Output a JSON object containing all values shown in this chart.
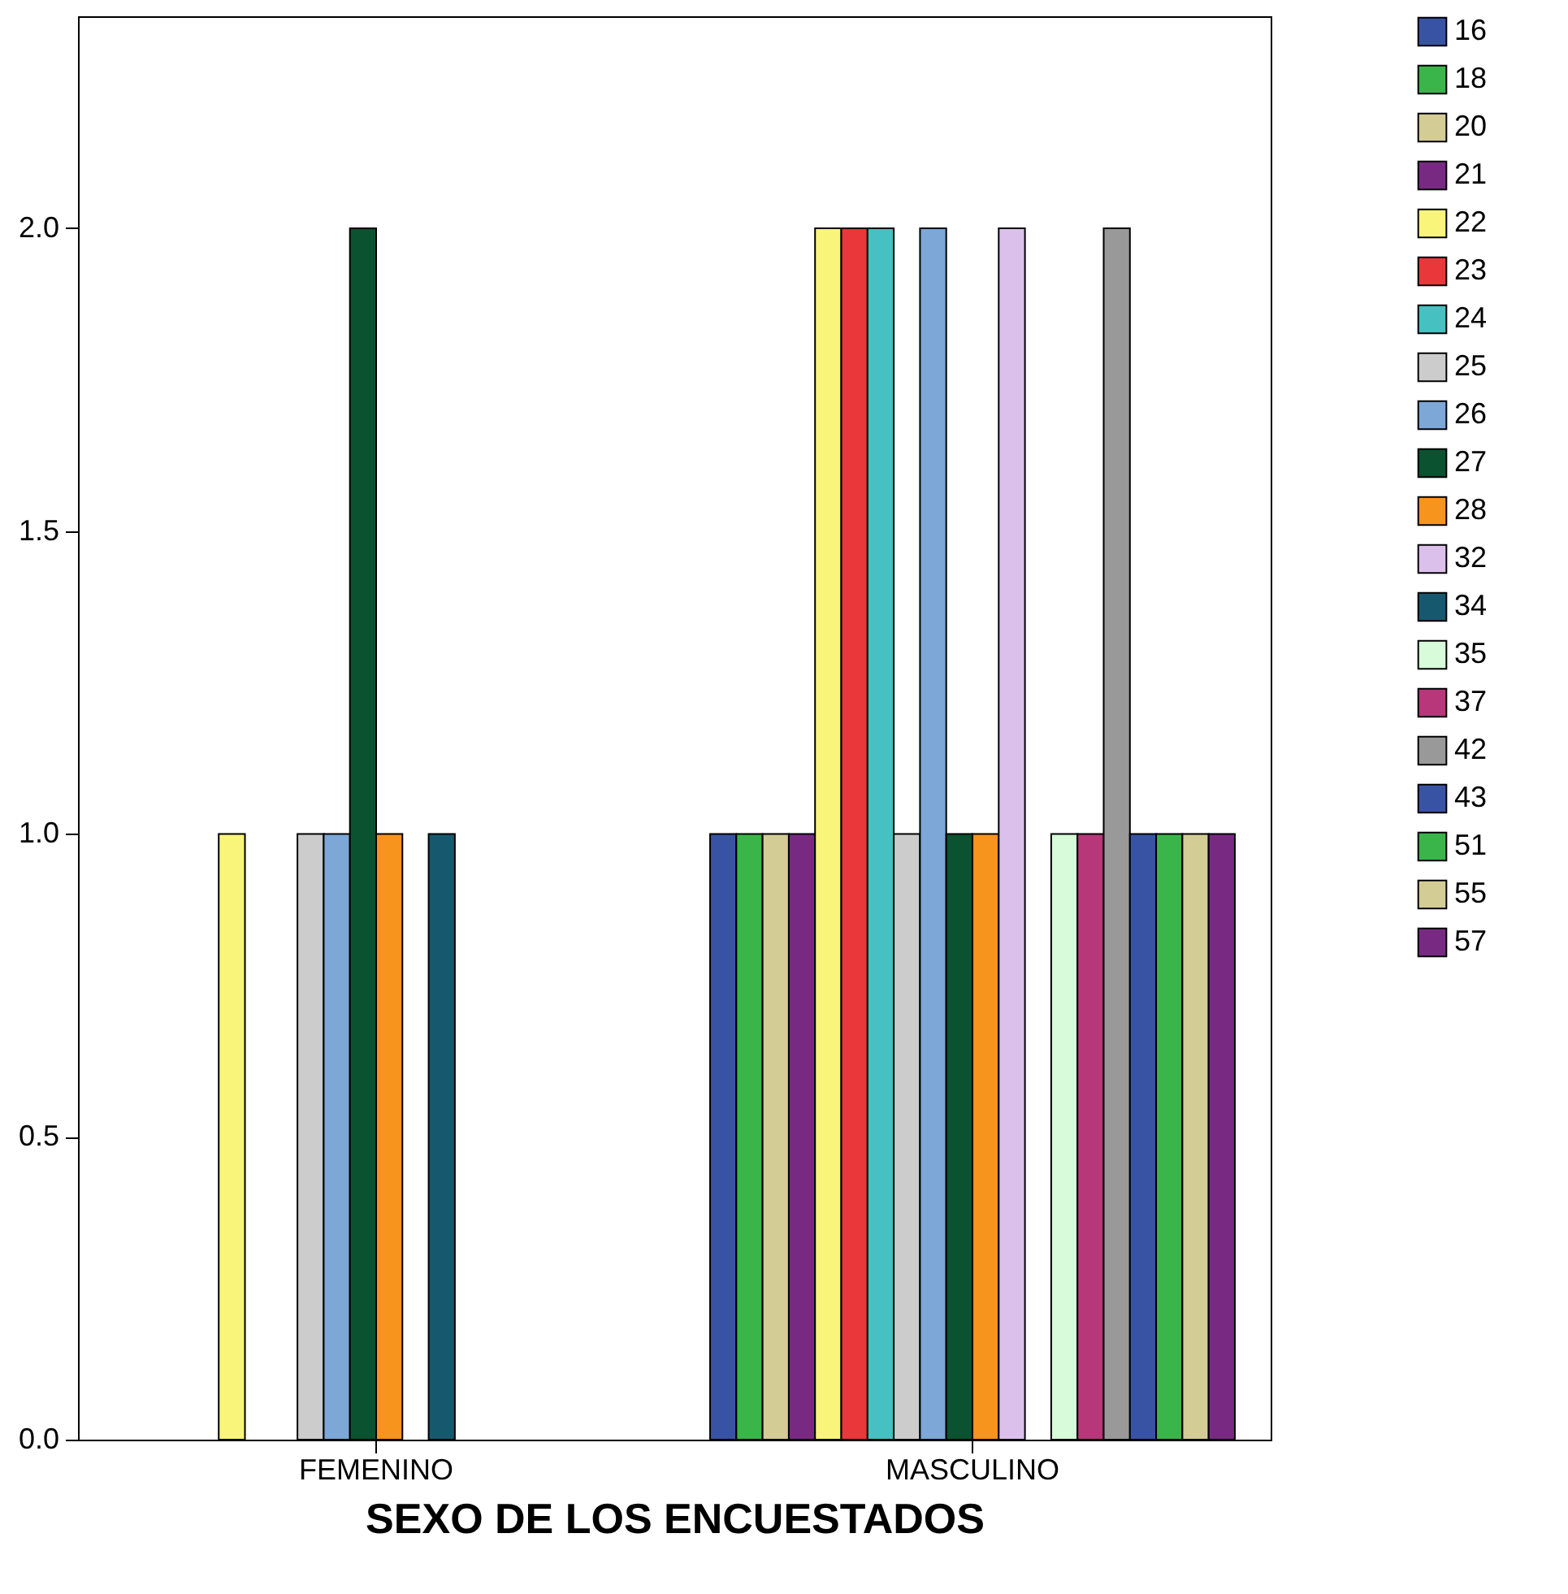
{
  "chart_data": {
    "type": "bar",
    "xlabel": "SEXO DE LOS ENCUESTADOS",
    "categories": [
      "FEMENINO",
      "MASCULINO"
    ],
    "series": [
      {
        "name": "16",
        "color": "#3953a4",
        "values": [
          null,
          1
        ]
      },
      {
        "name": "18",
        "color": "#3ab54a",
        "values": [
          null,
          1
        ]
      },
      {
        "name": "20",
        "color": "#d3cc95",
        "values": [
          null,
          1
        ]
      },
      {
        "name": "21",
        "color": "#782a83",
        "values": [
          null,
          1
        ]
      },
      {
        "name": "22",
        "color": "#f8f57a",
        "values": [
          1,
          2
        ]
      },
      {
        "name": "23",
        "color": "#e9373a",
        "values": [
          null,
          2
        ]
      },
      {
        "name": "24",
        "color": "#46c0c0",
        "values": [
          null,
          2
        ]
      },
      {
        "name": "25",
        "color": "#cccccc",
        "values": [
          1,
          1
        ]
      },
      {
        "name": "26",
        "color": "#7ca7d6",
        "values": [
          1,
          2
        ]
      },
      {
        "name": "27",
        "color": "#0a5230",
        "values": [
          2,
          1
        ]
      },
      {
        "name": "28",
        "color": "#f7941d",
        "values": [
          1,
          1
        ]
      },
      {
        "name": "32",
        "color": "#dcc0ec",
        "values": [
          null,
          2
        ]
      },
      {
        "name": "34",
        "color": "#16596f",
        "values": [
          1,
          null
        ]
      },
      {
        "name": "35",
        "color": "#d8fbd9",
        "values": [
          null,
          1
        ]
      },
      {
        "name": "37",
        "color": "#b7377a",
        "values": [
          null,
          1
        ]
      },
      {
        "name": "42",
        "color": "#999999",
        "values": [
          null,
          2
        ]
      },
      {
        "name": "43",
        "color": "#3953a4",
        "values": [
          null,
          1
        ]
      },
      {
        "name": "51",
        "color": "#3ab54a",
        "values": [
          null,
          1
        ]
      },
      {
        "name": "55",
        "color": "#d3cc95",
        "values": [
          null,
          1
        ]
      },
      {
        "name": "57",
        "color": "#782a83",
        "values": [
          null,
          1
        ]
      }
    ],
    "ylim": [
      0,
      2.35
    ],
    "yticks": [
      {
        "value": 0,
        "label": "0.0"
      },
      0.5,
      {
        "value": 1,
        "label": "1.0"
      },
      1.5,
      {
        "value": 2,
        "label": "2.0"
      }
    ],
    "grid": false,
    "legend": "right"
  }
}
